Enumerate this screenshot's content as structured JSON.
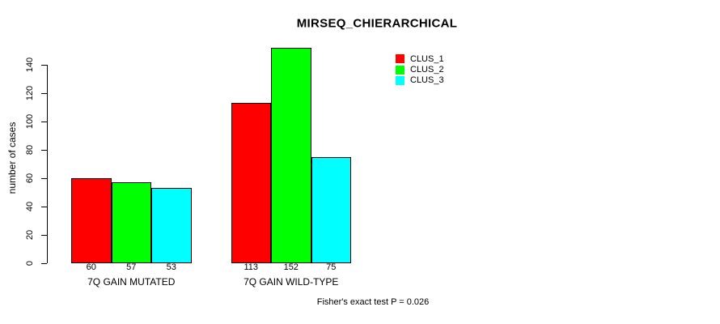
{
  "chart_data": {
    "type": "bar",
    "title": "MIRSEQ_CHIERARCHICAL",
    "xlabel": "",
    "ylabel": "number of cases",
    "categories": [
      "7Q GAIN MUTATED",
      "7Q GAIN WILD-TYPE"
    ],
    "series": [
      {
        "name": "CLUS_1",
        "color": "#ff0000",
        "values": [
          60,
          113
        ]
      },
      {
        "name": "CLUS_2",
        "color": "#00ff00",
        "values": [
          57,
          152
        ]
      },
      {
        "name": "CLUS_3",
        "color": "#00ffff",
        "values": [
          53,
          75
        ]
      }
    ],
    "bar_value_labels": [
      [
        60,
        57,
        53
      ],
      [
        113,
        152,
        75
      ]
    ],
    "yticks": [
      0,
      20,
      40,
      60,
      80,
      100,
      120,
      140
    ],
    "ylim": [
      0,
      155
    ],
    "grid": false,
    "legend_position": "top-right",
    "legend_entries": [
      "CLUS_1",
      "CLUS_2",
      "CLUS_3"
    ],
    "annotation": "Fisher's exact test P = 0.026"
  },
  "colors": {
    "clus_1": "#ff0000",
    "clus_2": "#00ff00",
    "clus_3": "#00ffff",
    "axis": "#000000",
    "background": "#ffffff"
  }
}
